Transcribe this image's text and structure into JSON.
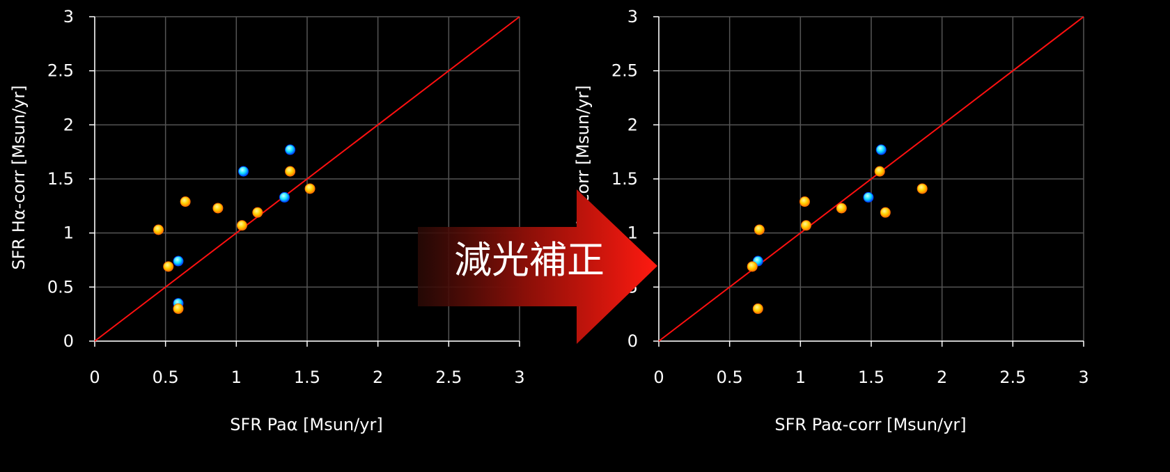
{
  "chart_data": [
    {
      "type": "scatter",
      "xlabel": "SFR Paα [Msun/yr]",
      "ylabel": "SFR Hα-corr [Msun/yr]",
      "xlim": [
        0,
        3
      ],
      "ylim": [
        0,
        3
      ],
      "x_ticks": [
        "0",
        "0.5",
        "1",
        "1.5",
        "2",
        "2.5",
        "3"
      ],
      "y_ticks": [
        "0",
        "0.5",
        "1",
        "1.5",
        "2",
        "2.5",
        "3"
      ],
      "grid": true,
      "reference_line": {
        "x": [
          0,
          3
        ],
        "y": [
          0,
          3
        ],
        "color": "#ff1010"
      },
      "series": [
        {
          "color": "#00e5ff",
          "points": [
            [
              0.59,
              0.35
            ],
            [
              0.59,
              0.74
            ],
            [
              1.05,
              1.57
            ],
            [
              1.34,
              1.33
            ],
            [
              1.38,
              1.77
            ]
          ]
        },
        {
          "color": "#ffd700",
          "points": [
            [
              0.45,
              1.03
            ],
            [
              0.52,
              0.69
            ],
            [
              0.59,
              0.3
            ],
            [
              0.64,
              1.29
            ],
            [
              0.87,
              1.23
            ],
            [
              1.04,
              1.07
            ],
            [
              1.15,
              1.19
            ],
            [
              1.38,
              1.57
            ],
            [
              1.52,
              1.41
            ]
          ]
        }
      ]
    },
    {
      "type": "scatter",
      "xlabel": "SFR Paα-corr [Msun/yr]",
      "ylabel": "SFR Hα-corr [Msun/yr]",
      "xlim": [
        0,
        3
      ],
      "ylim": [
        0,
        3
      ],
      "x_ticks": [
        "0",
        "0.5",
        "1",
        "1.5",
        "2",
        "2.5",
        "3"
      ],
      "y_ticks": [
        "0",
        "0.5",
        "1",
        "1.5",
        "2",
        "2.5",
        "3"
      ],
      "grid": true,
      "reference_line": {
        "x": [
          0,
          3
        ],
        "y": [
          0,
          3
        ],
        "color": "#ff1010"
      },
      "series": [
        {
          "color": "#00e5ff",
          "points": [
            [
              0.7,
              0.74
            ],
            [
              1.48,
              1.33
            ],
            [
              1.57,
              1.77
            ]
          ]
        },
        {
          "color": "#ffd700",
          "points": [
            [
              0.66,
              0.69
            ],
            [
              0.7,
              0.3
            ],
            [
              0.71,
              1.03
            ],
            [
              1.03,
              1.29
            ],
            [
              1.04,
              1.07
            ],
            [
              1.29,
              1.23
            ],
            [
              1.56,
              1.57
            ],
            [
              1.6,
              1.19
            ],
            [
              1.86,
              1.41
            ]
          ]
        }
      ]
    }
  ],
  "arrow": {
    "label": "減光補正"
  },
  "colors": {
    "background": "#000000",
    "grid": "#555555",
    "axis": "#ffffff",
    "diagonal": "#ff1010"
  }
}
